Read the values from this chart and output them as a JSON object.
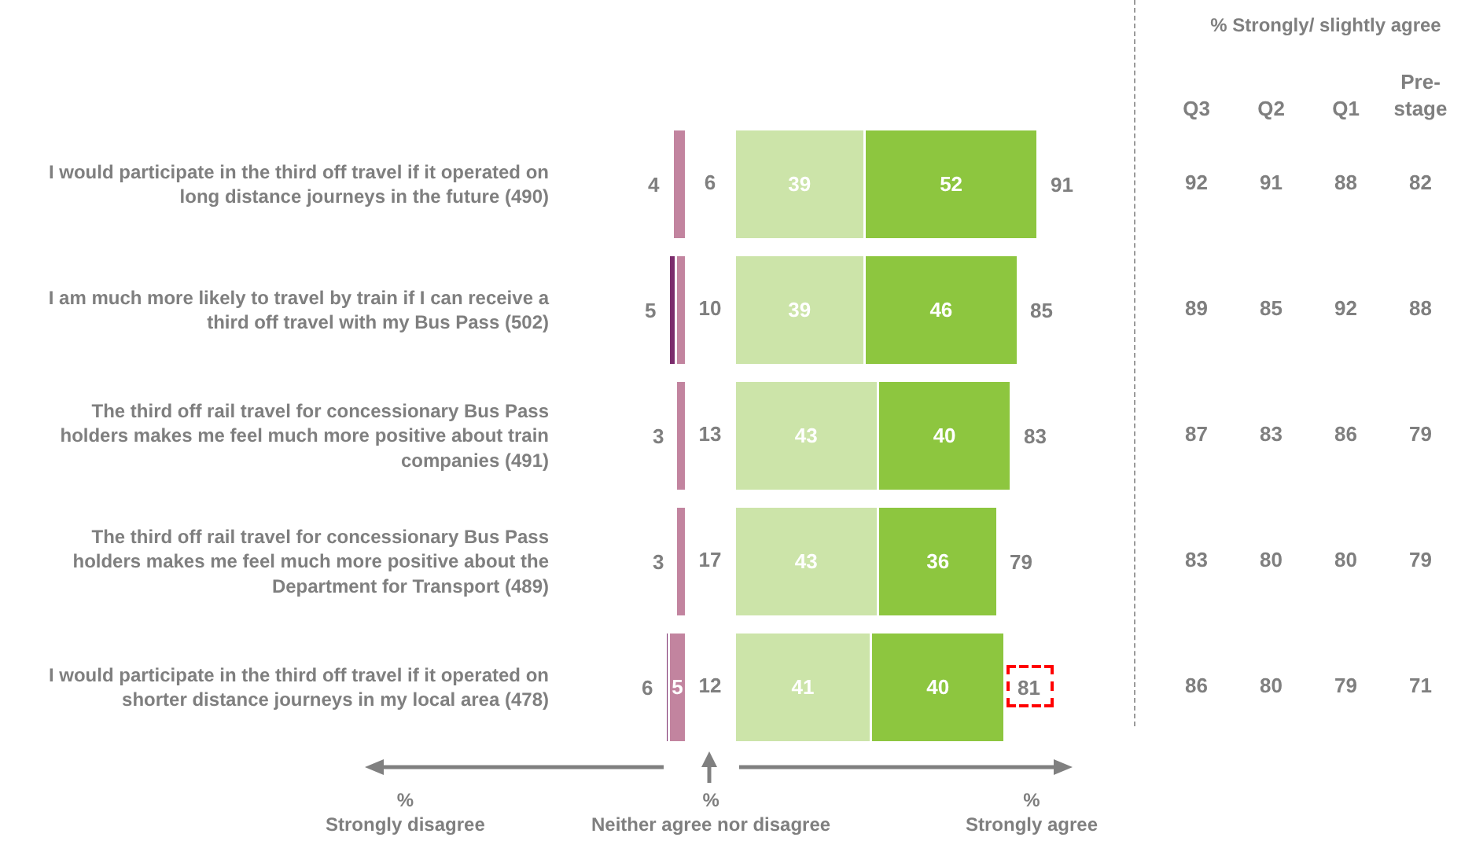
{
  "chart_data": [
    {
      "type": "bar",
      "orientation": "horizontal",
      "stacked": true,
      "tick_labels": "y",
      "categories": [
        "I would participate in the third off travel if it operated on long distance journeys in the future (490)",
        "I am much more likely to travel by train if I can receive a third off travel with my Bus Pass (502)",
        "The third off rail travel for concessionary Bus Pass holders makes me feel much more positive about train companies (491)",
        "The third off rail travel for concessionary Bus Pass holders makes me feel much more positive about the Department for Transport (489)",
        "I would participate in the third off travel if it operated on shorter distance journeys in my local area (478)"
      ],
      "series": [
        {
          "color": "#c2849f",
          "values": [
            4,
            3,
            3,
            3,
            5
          ],
          "value_labels": [
            null,
            null,
            null,
            null,
            "5"
          ]
        },
        {
          "color": "#7b2c6c",
          "values": [
            null,
            2,
            null,
            null,
            1
          ]
        }
      ],
      "totals": [
        "4",
        "5",
        "3",
        "3",
        "6"
      ],
      "annotations": [
        "%\nStrongly disagree"
      ]
    },
    {
      "type": "other",
      "categories": [
        null,
        null,
        null,
        null,
        null
      ],
      "values": [
        6,
        10,
        13,
        17,
        12
      ],
      "data_labels": true,
      "annotations": [
        "%\nNeither agree nor disagree"
      ]
    },
    {
      "type": "bar",
      "orientation": "horizontal",
      "stacked": true,
      "categories": [
        null,
        null,
        null,
        null,
        null
      ],
      "series": [
        {
          "color": "#cce4a9",
          "values": [
            39,
            39,
            43,
            43,
            41
          ]
        },
        {
          "color": "#8dc63f",
          "values": [
            52,
            46,
            40,
            36,
            40
          ]
        }
      ],
      "data_labels": true,
      "totals": [
        "91",
        "85",
        "83",
        "79",
        "81"
      ],
      "annotations": [
        "%\nStrongly agree"
      ]
    },
    {
      "type": "heatmap",
      "title": "% Strongly/ slightly agree",
      "categories": [
        "Q3",
        "Q2",
        "Q1",
        "Pre-stage"
      ],
      "y_categories": [
        null,
        null,
        null,
        null,
        null
      ],
      "data_labels": true,
      "cells": [
        [
          92,
          91,
          88,
          82
        ],
        [
          89,
          85,
          92,
          88
        ],
        [
          87,
          83,
          86,
          79
        ],
        [
          83,
          80,
          80,
          79
        ],
        [
          86,
          80,
          79,
          71
        ]
      ]
    }
  ]
}
